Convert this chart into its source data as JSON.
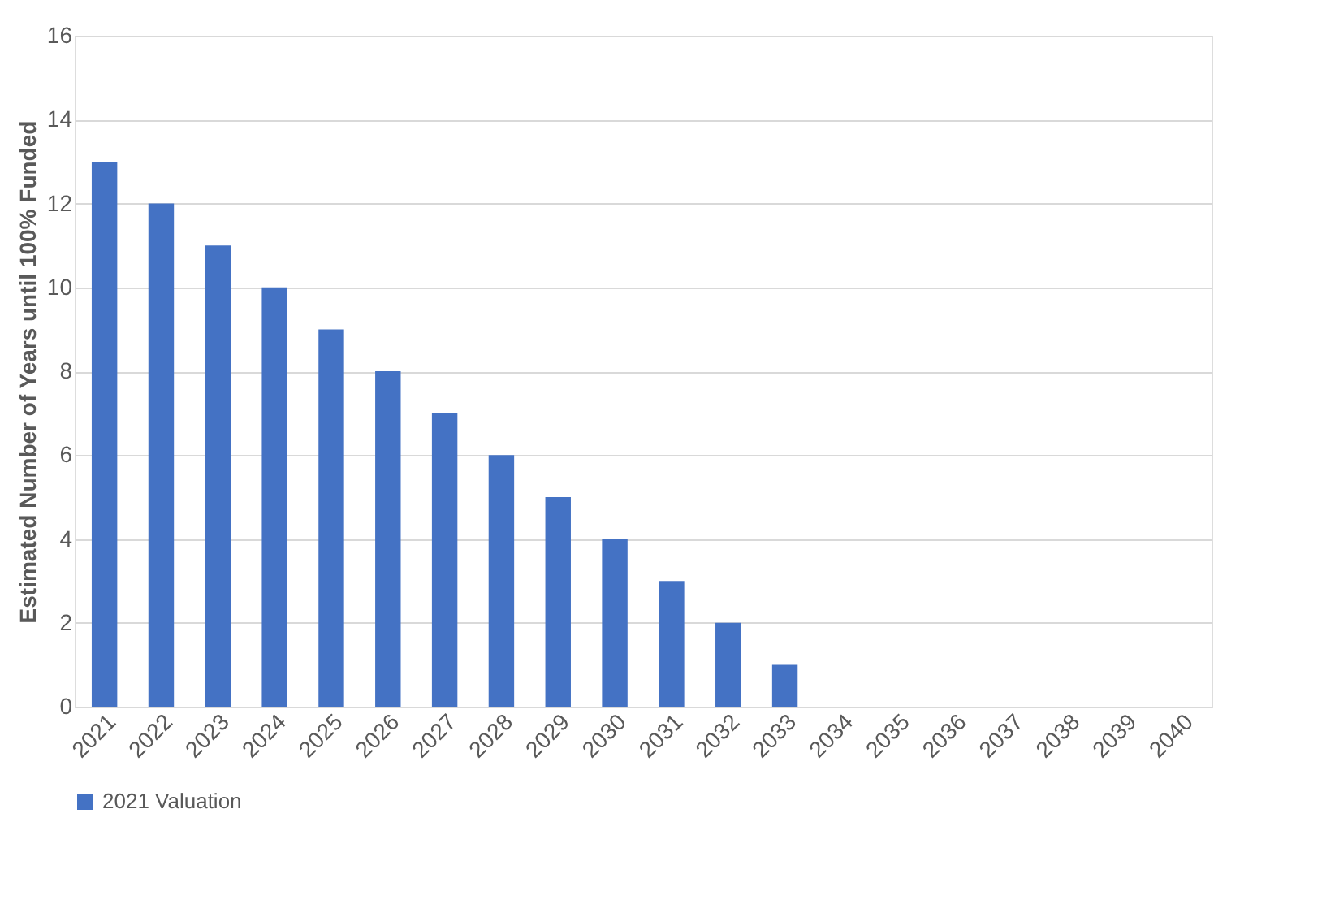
{
  "chart_data": {
    "type": "bar",
    "ylabel": "Estimated Number of Years until 100% Funded",
    "categories": [
      "2021",
      "2022",
      "2023",
      "2024",
      "2025",
      "2026",
      "2027",
      "2028",
      "2029",
      "2030",
      "2031",
      "2032",
      "2033",
      "2034",
      "2035",
      "2036",
      "2037",
      "2038",
      "2039",
      "2040"
    ],
    "series": [
      {
        "name": "2021 Valuation",
        "color": "#4472c4",
        "values": [
          13,
          12,
          11,
          10,
          9,
          8,
          7,
          6,
          5,
          4,
          3,
          2,
          1,
          0,
          0,
          0,
          0,
          0,
          0,
          0
        ]
      }
    ],
    "ylim": [
      0,
      16
    ],
    "yticks": [
      0,
      2,
      4,
      6,
      8,
      10,
      12,
      14,
      16
    ],
    "grid": "y",
    "legend": "bottom"
  }
}
